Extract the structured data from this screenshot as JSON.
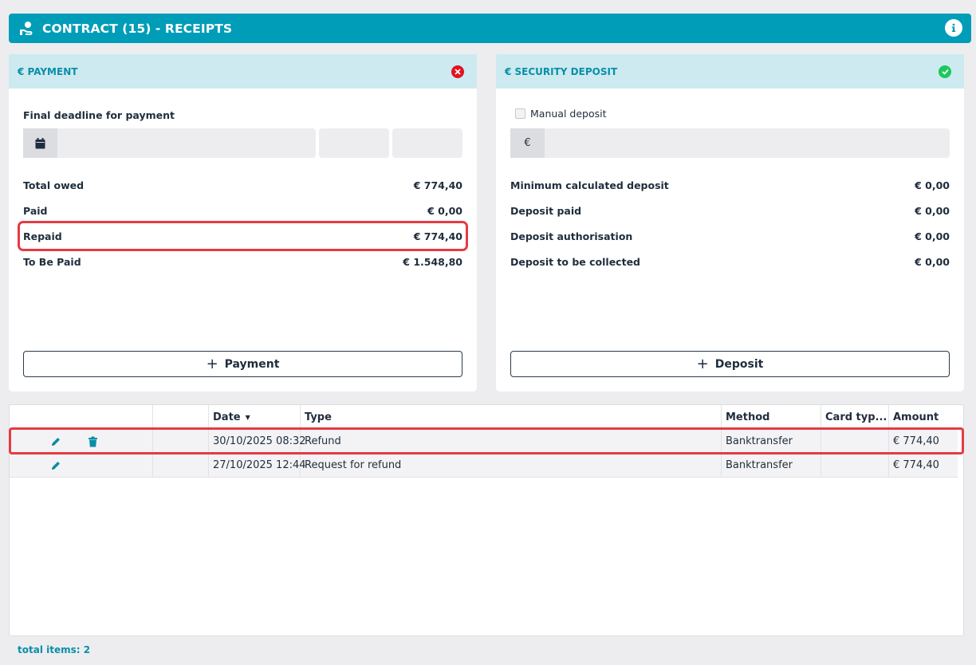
{
  "header": {
    "title": "CONTRACT (15) - RECEIPTS",
    "logo_icon": "hand-coin-icon",
    "info_icon": "info-icon"
  },
  "payment": {
    "title": "€ PAYMENT",
    "status": "unpaid",
    "status_color": "#e2121f",
    "deadline_label": "Final deadline for payment",
    "date_value": "",
    "rows": [
      {
        "label": "Total owed",
        "value": "€ 774,40"
      },
      {
        "label": "Paid",
        "value": "€ 0,00"
      },
      {
        "label": "Repaid",
        "value": "€ 774,40"
      },
      {
        "label": "To Be Paid",
        "value": "€ 1.548,80"
      }
    ],
    "button_label": "Payment"
  },
  "deposit": {
    "title": "€ SECURITY DEPOSIT",
    "status": "ok",
    "status_color": "#1cc85b",
    "manual_label": "Manual deposit",
    "manual_checked": false,
    "currency_prefix": "€",
    "amount_value": "",
    "rows": [
      {
        "label": "Minimum calculated deposit",
        "value": "€ 0,00"
      },
      {
        "label": "Deposit paid",
        "value": "€ 0,00"
      },
      {
        "label": "Deposit authorisation",
        "value": "€ 0,00"
      },
      {
        "label": "Deposit to be collected",
        "value": "€ 0,00"
      }
    ],
    "button_label": "Deposit"
  },
  "grid": {
    "columns": [
      "",
      "",
      "Date",
      "Type",
      "Method",
      "Card typ...",
      "Amount"
    ],
    "rows": [
      {
        "date": "30/10/2025 08:32",
        "type": "Refund",
        "method": "Banktransfer",
        "card_type": "",
        "amount": "€ 774,40",
        "can_delete": true
      },
      {
        "date": "27/10/2025 12:44",
        "type": "Request for refund",
        "method": "Banktransfer",
        "card_type": "",
        "amount": "€ 774,40",
        "can_delete": false
      }
    ],
    "total_items": "total items: 2"
  },
  "colors": {
    "accent": "#009db8",
    "panel_header": "#cceaf0",
    "highlight": "#e53b44"
  }
}
